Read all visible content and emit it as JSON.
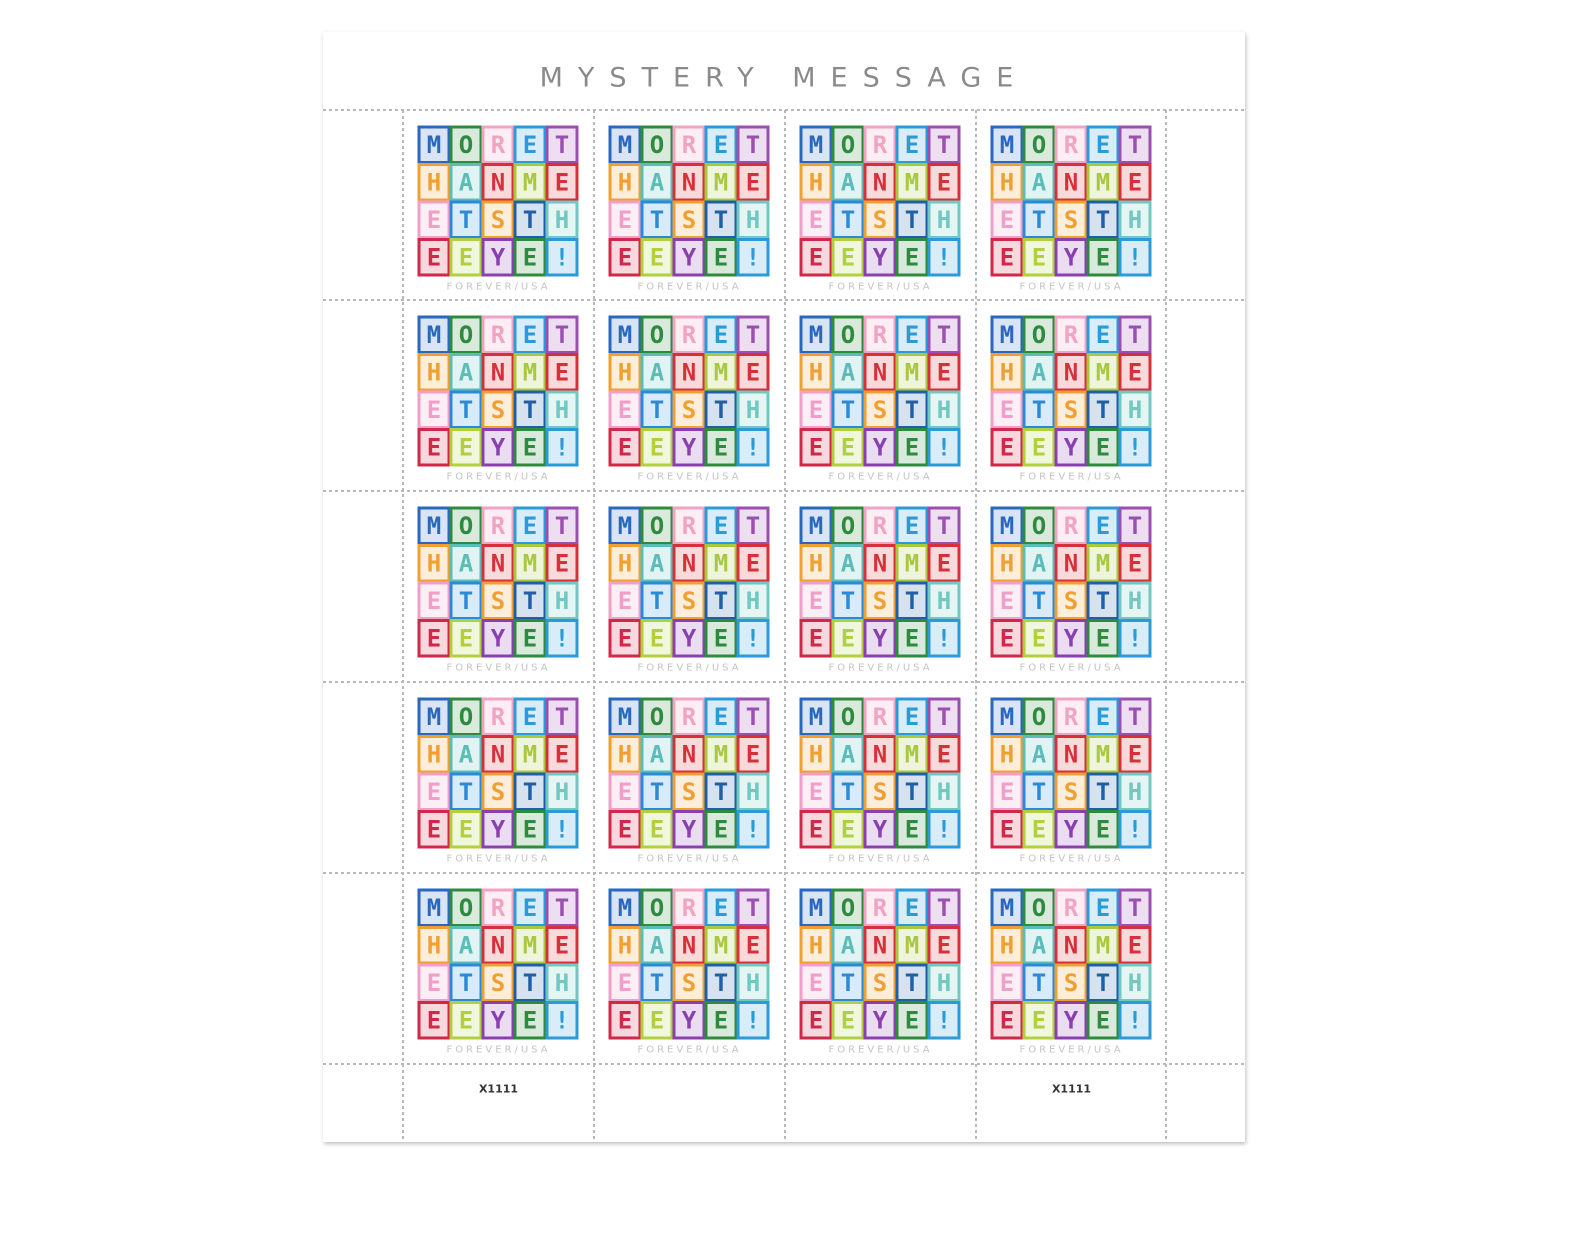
{
  "header": {
    "title": "MYSTERY MESSAGE"
  },
  "stamp": {
    "tiles": [
      "M",
      "O",
      "R",
      "E",
      "T",
      "H",
      "A",
      "N",
      "M",
      "E",
      "E",
      "T",
      "S",
      "T",
      "H",
      "E",
      "E",
      "Y",
      "E",
      "!"
    ],
    "denomination": "FOREVER/USA"
  },
  "plate_numbers": [
    "X1111",
    "X1111"
  ]
}
